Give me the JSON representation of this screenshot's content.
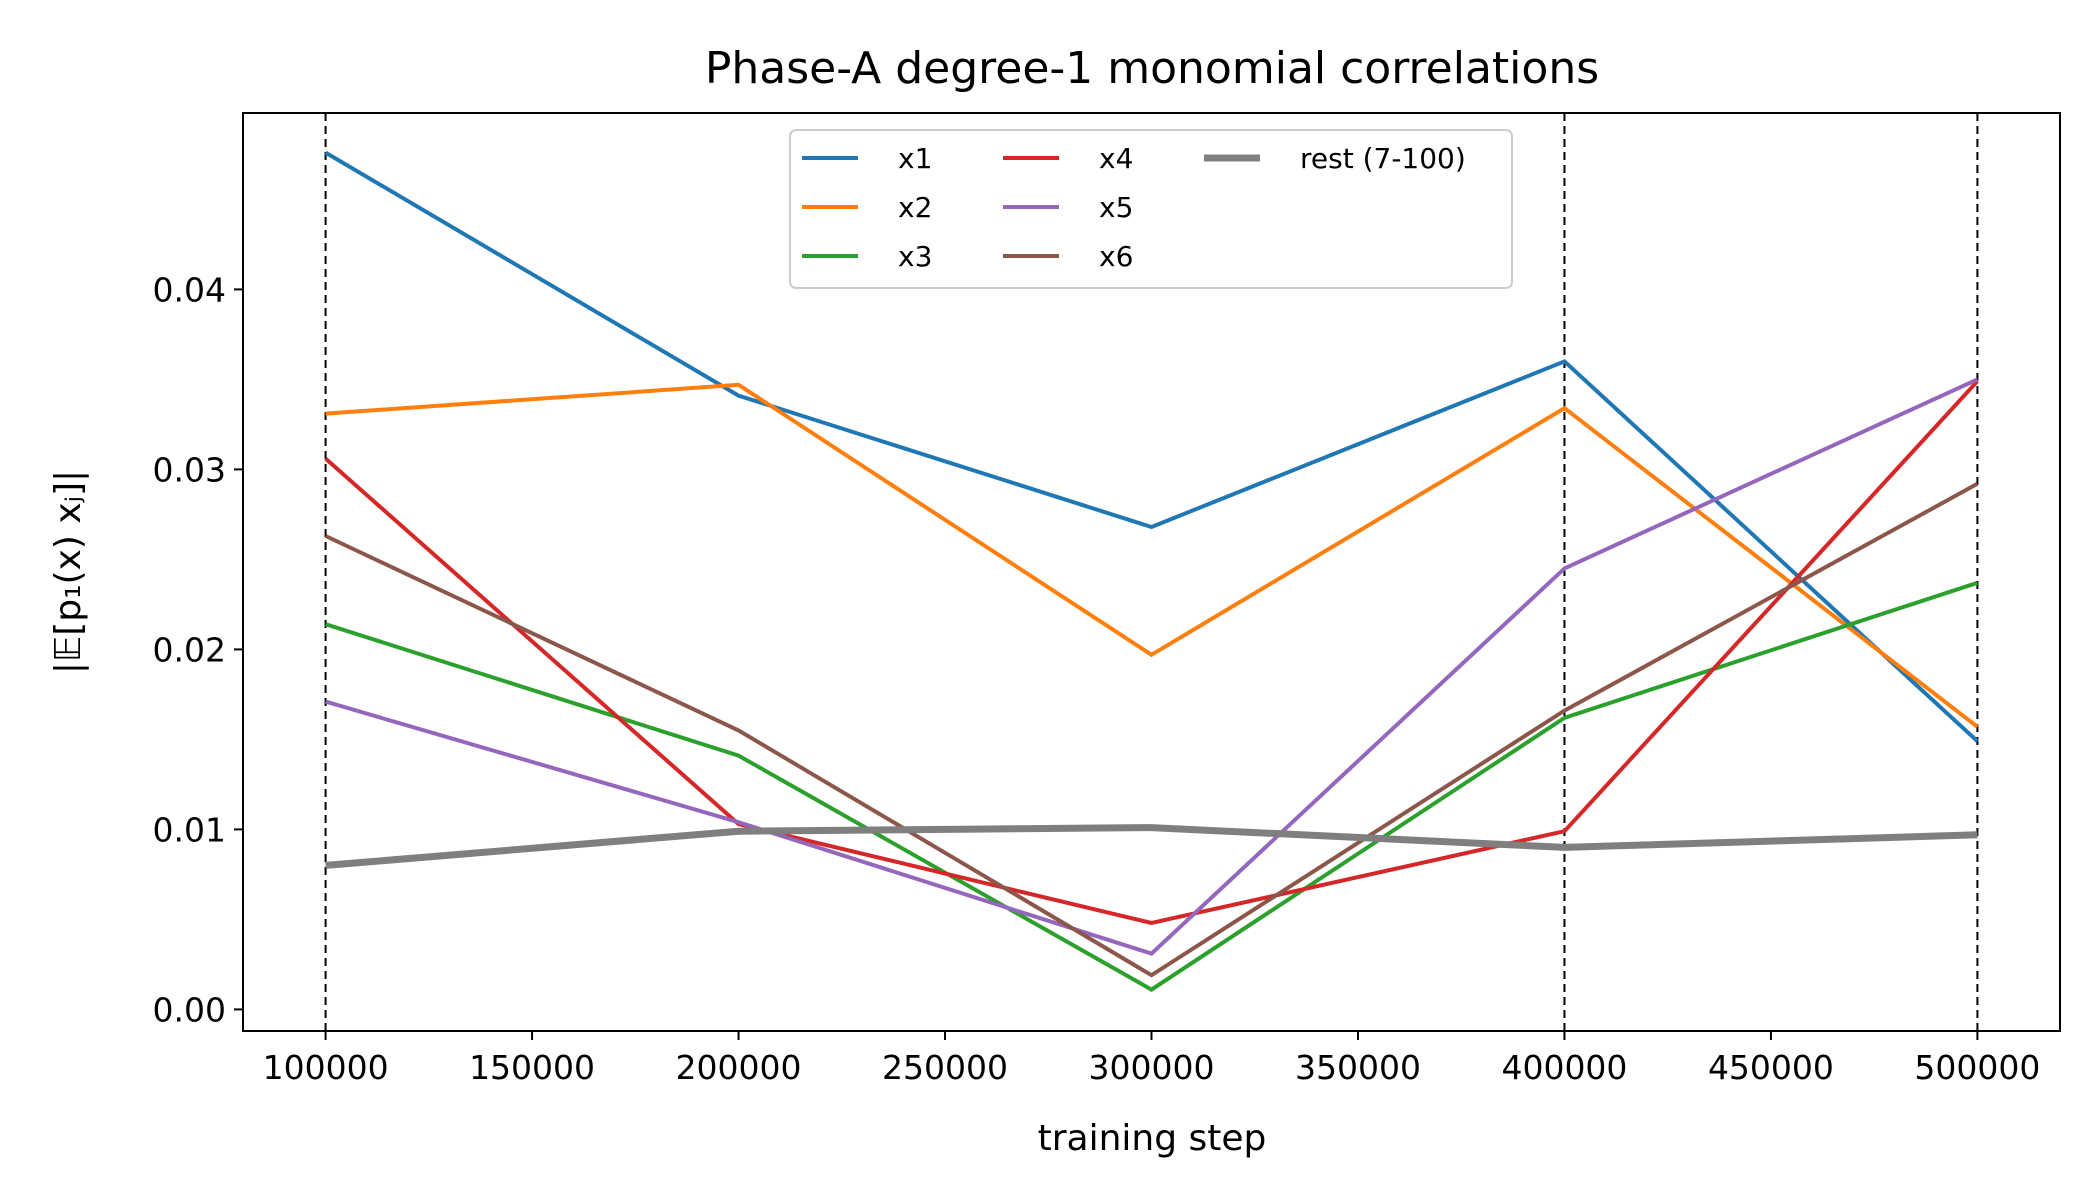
{
  "chart_data": {
    "type": "line",
    "title": "Phase-A  degree-1 monomial correlations",
    "xlabel": "training step",
    "ylabel": "|𝔼[p₁(x) xⱼ]|",
    "x": [
      100000,
      200000,
      300000,
      400000,
      500000
    ],
    "xlim": [
      80000,
      520000
    ],
    "ylim": [
      -0.0012,
      0.0498
    ],
    "xticks": [
      100000,
      150000,
      200000,
      250000,
      300000,
      350000,
      400000,
      450000,
      500000
    ],
    "xtick_labels": [
      "100000",
      "150000",
      "200000",
      "250000",
      "300000",
      "350000",
      "400000",
      "450000",
      "500000"
    ],
    "yticks": [
      0.0,
      0.01,
      0.02,
      0.03,
      0.04
    ],
    "ytick_labels": [
      "0.00",
      "0.01",
      "0.02",
      "0.03",
      "0.04"
    ],
    "vlines": [
      100000,
      400000,
      500000
    ],
    "grid": false,
    "legend_position": "top-center",
    "series": [
      {
        "name": "x1",
        "color": "#1f77b4",
        "values": [
          0.0476,
          0.0341,
          0.0268,
          0.036,
          0.0149
        ]
      },
      {
        "name": "x2",
        "color": "#ff7f0e",
        "values": [
          0.0331,
          0.0347,
          0.0197,
          0.0334,
          0.0157
        ]
      },
      {
        "name": "x3",
        "color": "#2ca02c",
        "values": [
          0.0214,
          0.0141,
          0.0011,
          0.0162,
          0.0237
        ]
      },
      {
        "name": "x4",
        "color": "#d62728",
        "values": [
          0.0306,
          0.0103,
          0.0048,
          0.0099,
          0.0349
        ]
      },
      {
        "name": "x5",
        "color": "#9467bd",
        "values": [
          0.0171,
          0.0104,
          0.0031,
          0.0245,
          0.035
        ]
      },
      {
        "name": "x6",
        "color": "#8c564b",
        "values": [
          0.0263,
          0.0155,
          0.0019,
          0.0166,
          0.0292
        ]
      },
      {
        "name": "rest (7-100)",
        "color": "#7f7f7f",
        "values": [
          0.008,
          0.0099,
          0.0101,
          0.009,
          0.0097
        ],
        "thick": true
      }
    ]
  }
}
